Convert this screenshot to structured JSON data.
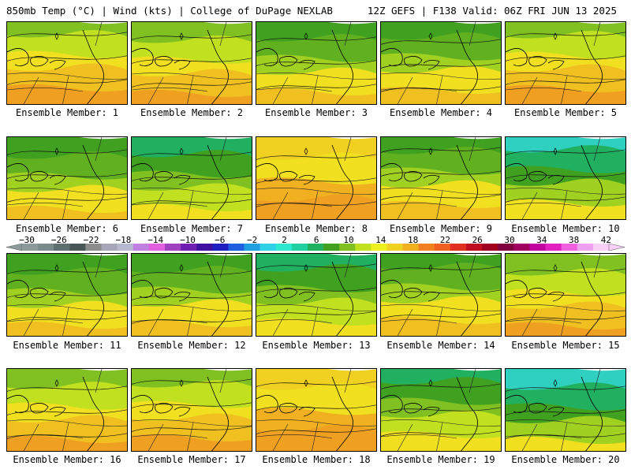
{
  "header": {
    "left": "850mb Temp (°C) | Wind (kts) | College of DuPage NEXLAB",
    "right": "12Z GEFS | F138 Valid: 06Z FRI JUN 13 2025"
  },
  "colorbar": {
    "ticks": [
      "−30",
      "−26",
      "−22",
      "−18",
      "−14",
      "−10",
      "−6",
      "−2",
      "2",
      "6",
      "10",
      "14",
      "18",
      "22",
      "26",
      "30",
      "34",
      "38",
      "42"
    ],
    "colors": [
      "#8c9a9a",
      "#7a8a8a",
      "#5e6e6e",
      "#4a5555",
      "#8c8c8c",
      "#a6a6b8",
      "#b8b8d0",
      "#c080e0",
      "#e060e0",
      "#a040c0",
      "#7020b0",
      "#4010a0",
      "#2020c0",
      "#2060e0",
      "#20a0e0",
      "#30d0e8",
      "#30e8d0",
      "#20d0a0",
      "#20b060",
      "#40a020",
      "#80c020",
      "#c0e020",
      "#f0f020",
      "#f0d020",
      "#f0b020",
      "#f08020",
      "#f06020",
      "#e03020",
      "#c01020",
      "#a00020",
      "#800040",
      "#a00060",
      "#c000a0",
      "#e020c0",
      "#f060e0",
      "#f0a0f0",
      "#f8d0f8"
    ]
  },
  "panels": [
    {
      "label": "Ensemble Member: 1",
      "palette": "warm"
    },
    {
      "label": "Ensemble Member: 2",
      "palette": "warm"
    },
    {
      "label": "Ensemble Member: 3",
      "palette": "mid"
    },
    {
      "label": "Ensemble Member: 4",
      "palette": "mid"
    },
    {
      "label": "Ensemble Member: 5",
      "palette": "warm"
    },
    {
      "label": "Ensemble Member: 6",
      "palette": "mid"
    },
    {
      "label": "Ensemble Member: 7",
      "palette": "cool"
    },
    {
      "label": "Ensemble Member: 8",
      "palette": "hot"
    },
    {
      "label": "Ensemble Member: 9",
      "palette": "mid"
    },
    {
      "label": "Ensemble Member: 10",
      "palette": "cold"
    },
    {
      "label": "Ensemble Member: 11",
      "palette": "mid"
    },
    {
      "label": "Ensemble Member: 12",
      "palette": "mid"
    },
    {
      "label": "Ensemble Member: 13",
      "palette": "cool"
    },
    {
      "label": "Ensemble Member: 14",
      "palette": "mid"
    },
    {
      "label": "Ensemble Member: 15",
      "palette": "warm"
    },
    {
      "label": "Ensemble Member: 16",
      "palette": "warm"
    },
    {
      "label": "Ensemble Member: 17",
      "palette": "warm"
    },
    {
      "label": "Ensemble Member: 18",
      "palette": "hot"
    },
    {
      "label": "Ensemble Member: 19",
      "palette": "cool"
    },
    {
      "label": "Ensemble Member: 20",
      "palette": "cold"
    }
  ]
}
